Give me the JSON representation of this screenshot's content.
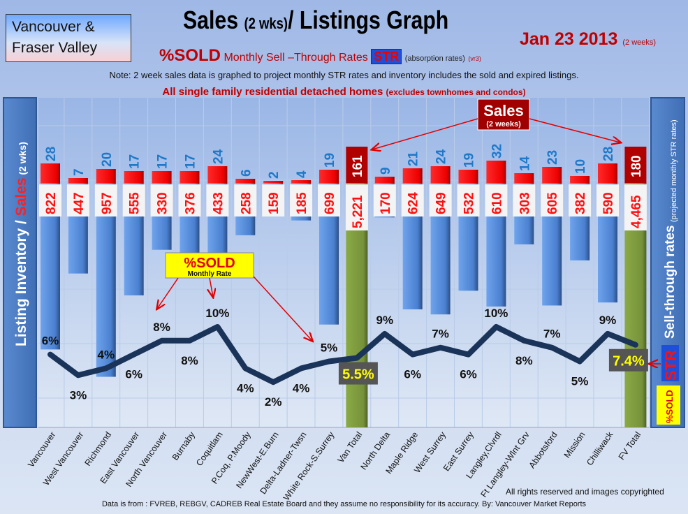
{
  "header": {
    "region": [
      "Vancouver &",
      "Fraser Valley"
    ],
    "title_main": "Sales ",
    "title_small": "(2 wks)",
    "title_rest": "/ Listings Graph",
    "date": "Jan 23 2013",
    "date_note": "(2 weeks)",
    "subtitle_sold": "%SOLD",
    "subtitle_monthly": "Monthly Sell –Through Rates",
    "subtitle_str": "STR",
    "subtitle_absorption": "(absorption rates)",
    "subtitle_version": "(vr3)",
    "note": "Note: 2 week sales data is graphed to project monthly STR rates and inventory includes the sold and expired listings.",
    "scope": "All single family residential detached homes",
    "scope_note": "(excludes townhomes and condos)"
  },
  "footer": {
    "rights": "All rights reserved and  images copyrighted",
    "source": "Data is from : FVREB, REBGV, CADREB Real Estate Board and they assume no responsibility for its accuracy. By: Vancouver Market Reports"
  },
  "chart_data": {
    "type": "bar",
    "title": "Sales (2 wks)/ Listings Graph",
    "ylabel_left": "Listing Inventory / Sales (2 wks)",
    "ylabel_left_parts": [
      "Listing Inventory / ",
      "Sales",
      " (2 wks)"
    ],
    "ylabel_right": "Sell-through rates",
    "ylabel_right_note": "(projected monthly STR rates)",
    "right_badges": {
      "str": "STR",
      "sold": "%SOLD"
    },
    "categories": [
      "Vancouver",
      "West Vancouver",
      "Richmond",
      "East Vancouver",
      "North Vancouver",
      "Burnaby",
      "Coquitlam",
      "P.Coq, P.Moody",
      "NewWest-E.Burn",
      "Delta-Ladner-Twsn",
      "White Rock-S.Surrey",
      "Van Total",
      "North Delta",
      "Maple Ridge",
      "West Surrey",
      "East Surrey",
      "Langley,Clvrdl",
      "Ft Langley-Wlnt Grv",
      "Abbotsford",
      "Mission",
      "Chilliwack",
      "FV Total"
    ],
    "series": [
      {
        "name": "Sales (2 weeks)",
        "values": [
          28,
          7,
          20,
          17,
          17,
          17,
          24,
          6,
          2,
          4,
          19,
          161,
          9,
          21,
          24,
          19,
          32,
          14,
          23,
          10,
          28,
          180
        ]
      },
      {
        "name": "Listing Inventory",
        "values": [
          822,
          447,
          957,
          555,
          330,
          376,
          433,
          258,
          159,
          185,
          699,
          5221,
          170,
          624,
          649,
          532,
          610,
          303,
          605,
          382,
          590,
          4465
        ]
      },
      {
        "name": "%SOLD Monthly Rate",
        "values": [
          6,
          3,
          4,
          6,
          8,
          8,
          10,
          4,
          2,
          4,
          5,
          5.5,
          9,
          6,
          7,
          6,
          10,
          8,
          7,
          5,
          9,
          7.4
        ]
      }
    ],
    "inventory_labels": [
      "822",
      "447",
      "957",
      "555",
      "330",
      "376",
      "433",
      "258",
      "159",
      "185",
      "699",
      "5,221",
      "170",
      "624",
      "649",
      "532",
      "610",
      "303",
      "605",
      "382",
      "590",
      "4,465"
    ],
    "rate_labels": [
      "6%",
      "3%",
      "4%",
      "6%",
      "8%",
      "8%",
      "10%",
      "4%",
      "2%",
      "4%",
      "5%",
      "5.5%",
      "9%",
      "6%",
      "7%",
      "6%",
      "10%",
      "8%",
      "7%",
      "5%",
      "9%",
      "7.4%"
    ],
    "rate_label_side": [
      "above",
      "below",
      "above",
      "below",
      "above",
      "below",
      "above",
      "below",
      "below",
      "below",
      "above",
      "box",
      "above",
      "below",
      "above",
      "below",
      "above",
      "below",
      "above",
      "below",
      "above",
      "box"
    ],
    "total_categories": [
      "Van Total",
      "FV Total"
    ],
    "annotations": {
      "sales_callout": [
        "Sales",
        "(2 weeks)"
      ],
      "sold_callout": [
        "%SOLD",
        "Monthly Rate"
      ]
    },
    "colors": {
      "inventory": "#4a86d8",
      "sales": "#ff0000",
      "total_bar": "#7a9a3a",
      "total_sales": "#b00000",
      "line": "#1a3358",
      "sales_label": "#1f78c8"
    }
  }
}
